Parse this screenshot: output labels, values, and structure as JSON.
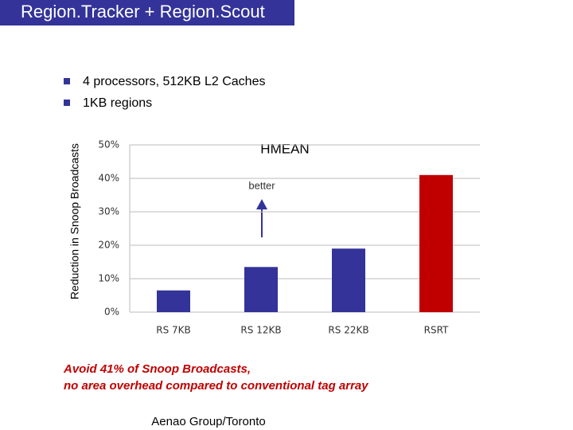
{
  "slide": {
    "title": "Region.Tracker + Region.Scout",
    "bullets": [
      "4 processors, 512KB L2 Caches",
      "1KB regions"
    ],
    "caption": [
      "Avoid 41% of Snoop Broadcasts,",
      "no area overhead compared to conventional tag array"
    ],
    "footer": "Aenao Group/Toronto"
  },
  "chart_data": {
    "type": "bar",
    "title": "HMEAN",
    "y_label": "Reduction in Snoop Broadcasts",
    "annotation": "better",
    "categories": [
      "RS 7KB",
      "RS 12KB",
      "RS 22KB",
      "RSRT"
    ],
    "values": [
      6.5,
      13.5,
      19,
      41
    ],
    "colors": [
      "#333399",
      "#333399",
      "#333399",
      "#c00000"
    ],
    "ylim": [
      0,
      50
    ],
    "yticks": [
      {
        "value": 0,
        "label": "0%"
      },
      {
        "value": 10,
        "label": "10%"
      },
      {
        "value": 20,
        "label": "20%"
      },
      {
        "value": 30,
        "label": "30%"
      },
      {
        "value": 40,
        "label": "40%"
      },
      {
        "value": 50,
        "label": "50%"
      }
    ],
    "grid": true
  }
}
